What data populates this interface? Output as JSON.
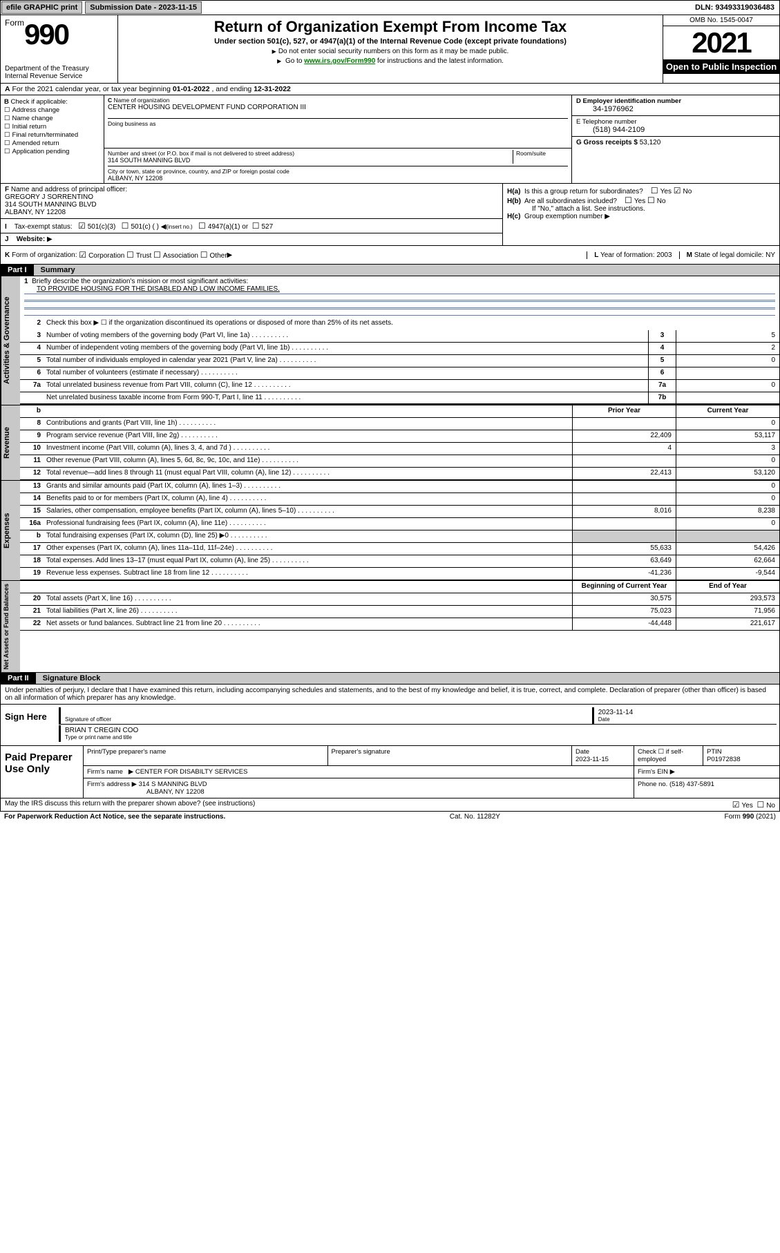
{
  "topbar": {
    "efile": "efile GRAPHIC print",
    "subdate_lbl": "Submission Date - ",
    "subdate": "2023-11-15",
    "dln_lbl": "DLN: ",
    "dln": "93493319036483"
  },
  "header": {
    "form_word": "Form",
    "form_num": "990",
    "dept": "Department of the Treasury\nInternal Revenue Service",
    "title": "Return of Organization Exempt From Income Tax",
    "sub": "Under section 501(c), 527, or 4947(a)(1) of the Internal Revenue Code (except private foundations)",
    "note": "Do not enter social security numbers on this form as it may be made public.",
    "link_pre": "Go to ",
    "link": "www.irs.gov/Form990",
    "link_post": " for instructions and the latest information.",
    "omb": "OMB No. 1545-0047",
    "year": "2021",
    "open": "Open to Public Inspection"
  },
  "row_a": {
    "pre": "For the 2021 calendar year, or tax year beginning ",
    "begin": "01-01-2022",
    "mid": " , and ending ",
    "end": "12-31-2022"
  },
  "col_b": {
    "hdr": "Check if applicable:",
    "items": [
      "Address change",
      "Name change",
      "Initial return",
      "Final return/terminated",
      "Amended return",
      "Application pending"
    ]
  },
  "col_c": {
    "name_lbl": "Name of organization",
    "name": "CENTER HOUSING DEVELOPMENT FUND CORPORATION III",
    "dba_lbl": "Doing business as",
    "addr_lbl": "Number and street (or P.O. box if mail is not delivered to street address)",
    "room_lbl": "Room/suite",
    "addr": "314 SOUTH MANNING BLVD",
    "city_lbl": "City or town, state or province, country, and ZIP or foreign postal code",
    "city": "ALBANY, NY  12208"
  },
  "col_d": {
    "lbl": "D Employer identification number",
    "val": "34-1976962"
  },
  "col_e": {
    "lbl": "E Telephone number",
    "val": "(518) 944-2109"
  },
  "col_g": {
    "lbl": "G Gross receipts $",
    "val": "53,120"
  },
  "col_f": {
    "lbl": "Name and address of principal officer:",
    "name": "GREGORY J SORRENTINO",
    "addr1": "314 SOUTH MANNING BLVD",
    "addr2": "ALBANY, NY  12208"
  },
  "col_h": {
    "a_lbl": "Is this a group return for subordinates?",
    "a_yes": "Yes",
    "a_no": "No",
    "b_lbl": "Are all subordinates included?",
    "b_yes": "Yes",
    "b_no": "No",
    "note": "If \"No,\" attach a list. See instructions.",
    "c_lbl": "Group exemption number"
  },
  "row_i": {
    "lbl": "Tax-exempt status:",
    "o1": "501(c)(3)",
    "o2": "501(c) (   )",
    "o2b": "(insert no.)",
    "o3": "4947(a)(1) or",
    "o4": "527"
  },
  "row_j": {
    "lbl": "Website:"
  },
  "row_k": {
    "lbl": "Form of organization:",
    "o1": "Corporation",
    "o2": "Trust",
    "o3": "Association",
    "o4": "Other",
    "l_lbl": "Year of formation:",
    "l_val": "2003",
    "m_lbl": "State of legal domicile:",
    "m_val": "NY"
  },
  "part1": {
    "num": "Part I",
    "title": "Summary"
  },
  "p1_lines": {
    "l1_num": "1",
    "l1": "Briefly describe the organization's mission or most significant activities:",
    "l1_val": "TO PROVIDE HOUSING FOR THE DISABLED AND LOW INCOME FAMILIES.",
    "l2_num": "2",
    "l2": "Check this box ▶ ☐  if the organization discontinued its operations or disposed of more than 25% of its net assets.",
    "l3_num": "3",
    "l3": "Number of voting members of the governing body (Part VI, line 1a)",
    "l3c": "3",
    "l3v": "5",
    "l4_num": "4",
    "l4": "Number of independent voting members of the governing body (Part VI, line 1b)",
    "l4c": "4",
    "l4v": "2",
    "l5_num": "5",
    "l5": "Total number of individuals employed in calendar year 2021 (Part V, line 2a)",
    "l5c": "5",
    "l5v": "0",
    "l6_num": "6",
    "l6": "Total number of volunteers (estimate if necessary)",
    "l6c": "6",
    "l6v": "",
    "l7a_num": "7a",
    "l7a": "Total unrelated business revenue from Part VIII, column (C), line 12",
    "l7ac": "7a",
    "l7av": "0",
    "l7b": "Net unrelated business taxable income from Form 990-T, Part I, line 11",
    "l7bc": "7b",
    "l7bv": ""
  },
  "p1_rev_hdr": {
    "b": "b",
    "prior": "Prior Year",
    "curr": "Current Year"
  },
  "p1_rev": [
    {
      "n": "8",
      "d": "Contributions and grants (Part VIII, line 1h)",
      "p": "",
      "c": "0"
    },
    {
      "n": "9",
      "d": "Program service revenue (Part VIII, line 2g)",
      "p": "22,409",
      "c": "53,117"
    },
    {
      "n": "10",
      "d": "Investment income (Part VIII, column (A), lines 3, 4, and 7d )",
      "p": "4",
      "c": "3"
    },
    {
      "n": "11",
      "d": "Other revenue (Part VIII, column (A), lines 5, 6d, 8c, 9c, 10c, and 11e)",
      "p": "",
      "c": "0"
    },
    {
      "n": "12",
      "d": "Total revenue—add lines 8 through 11 (must equal Part VIII, column (A), line 12)",
      "p": "22,413",
      "c": "53,120"
    }
  ],
  "p1_exp": [
    {
      "n": "13",
      "d": "Grants and similar amounts paid (Part IX, column (A), lines 1–3)",
      "p": "",
      "c": "0"
    },
    {
      "n": "14",
      "d": "Benefits paid to or for members (Part IX, column (A), line 4)",
      "p": "",
      "c": "0"
    },
    {
      "n": "15",
      "d": "Salaries, other compensation, employee benefits (Part IX, column (A), lines 5–10)",
      "p": "8,016",
      "c": "8,238"
    },
    {
      "n": "16a",
      "d": "Professional fundraising fees (Part IX, column (A), line 11e)",
      "p": "",
      "c": "0"
    },
    {
      "n": "b",
      "d": "Total fundraising expenses (Part IX, column (D), line 25) ▶0",
      "p": "GREY",
      "c": "GREY"
    },
    {
      "n": "17",
      "d": "Other expenses (Part IX, column (A), lines 11a–11d, 11f–24e)",
      "p": "55,633",
      "c": "54,426"
    },
    {
      "n": "18",
      "d": "Total expenses. Add lines 13–17 (must equal Part IX, column (A), line 25)",
      "p": "63,649",
      "c": "62,664"
    },
    {
      "n": "19",
      "d": "Revenue less expenses. Subtract line 18 from line 12",
      "p": "-41,236",
      "c": "-9,544"
    }
  ],
  "p1_na_hdr": {
    "prior": "Beginning of Current Year",
    "curr": "End of Year"
  },
  "p1_na": [
    {
      "n": "20",
      "d": "Total assets (Part X, line 16)",
      "p": "30,575",
      "c": "293,573"
    },
    {
      "n": "21",
      "d": "Total liabilities (Part X, line 26)",
      "p": "75,023",
      "c": "71,956"
    },
    {
      "n": "22",
      "d": "Net assets or fund balances. Subtract line 21 from line 20",
      "p": "-44,448",
      "c": "221,617"
    }
  ],
  "part2": {
    "num": "Part II",
    "title": "Signature Block",
    "decl": "Under penalties of perjury, I declare that I have examined this return, including accompanying schedules and statements, and to the best of my knowledge and belief, it is true, correct, and complete. Declaration of preparer (other than officer) is based on all information of which preparer has any knowledge."
  },
  "sign": {
    "left": "Sign Here",
    "sig_lbl": "Signature of officer",
    "date_lbl": "Date",
    "date": "2023-11-14",
    "name": "BRIAN T CREGIN  COO",
    "name_lbl": "Type or print name and title"
  },
  "paid": {
    "left": "Paid Preparer Use Only",
    "h1": "Print/Type preparer's name",
    "h2": "Preparer's signature",
    "h3": "Date",
    "h3v": "2023-11-15",
    "h4": "Check ☐ if self-employed",
    "h5": "PTIN",
    "h5v": "P01972838",
    "firm_lbl": "Firm's name",
    "firm": "CENTER FOR DISABILTY SERVICES",
    "ein_lbl": "Firm's EIN",
    "addr_lbl": "Firm's address",
    "addr1": "314 S MANNING BLVD",
    "addr2": "ALBANY, NY  12208",
    "ph_lbl": "Phone no.",
    "ph": "(518) 437-5891"
  },
  "footer": {
    "discuss": "May the IRS discuss this return with the preparer shown above? (see instructions)",
    "yes": "Yes",
    "no": "No",
    "pra": "For Paperwork Reduction Act Notice, see the separate instructions.",
    "cat": "Cat. No. 11282Y",
    "form": "Form 990 (2021)"
  },
  "vtabs": {
    "gov": "Activities & Governance",
    "rev": "Revenue",
    "exp": "Expenses",
    "na": "Net Assets or Fund Balances"
  }
}
